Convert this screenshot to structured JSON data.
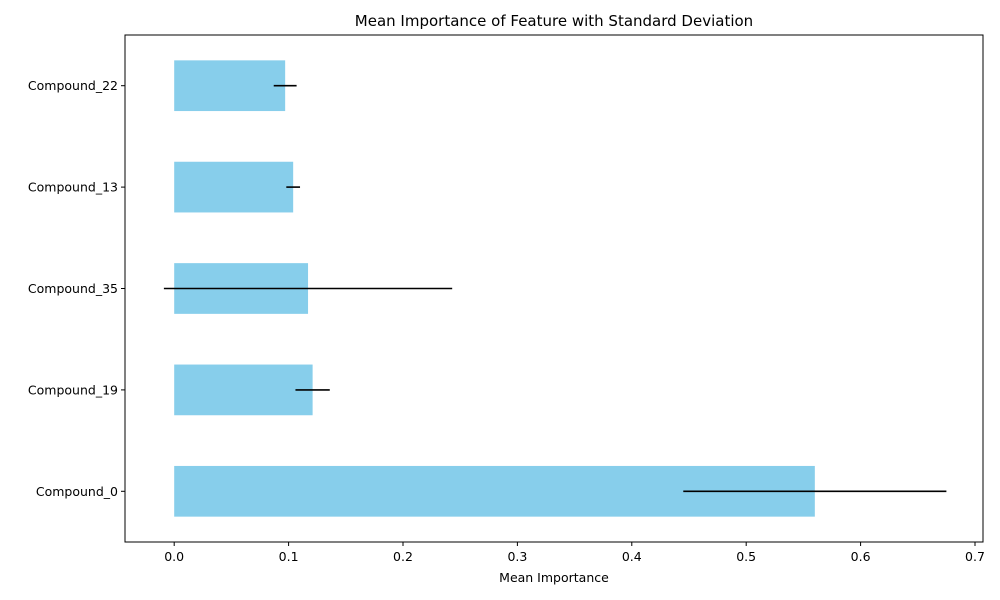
{
  "chart_data": {
    "type": "bar",
    "orientation": "horizontal",
    "title": "Mean Importance of Feature with Standard Deviation",
    "xlabel": "Mean Importance",
    "ylabel": "",
    "categories": [
      "Compound_0",
      "Compound_19",
      "Compound_35",
      "Compound_13",
      "Compound_22"
    ],
    "values": [
      0.56,
      0.121,
      0.117,
      0.104,
      0.097
    ],
    "error": [
      0.115,
      0.015,
      0.126,
      0.006,
      0.01
    ],
    "xlim": [
      -0.043,
      0.707
    ],
    "xticks": [
      "0.0",
      "0.1",
      "0.2",
      "0.3",
      "0.4",
      "0.5",
      "0.6",
      "0.7"
    ],
    "xtick_values": [
      0.0,
      0.1,
      0.2,
      0.3,
      0.4,
      0.5,
      0.6,
      0.7
    ],
    "bar_color": "#87ceeb",
    "error_color": "#000000",
    "grid": false,
    "legend": "none"
  }
}
